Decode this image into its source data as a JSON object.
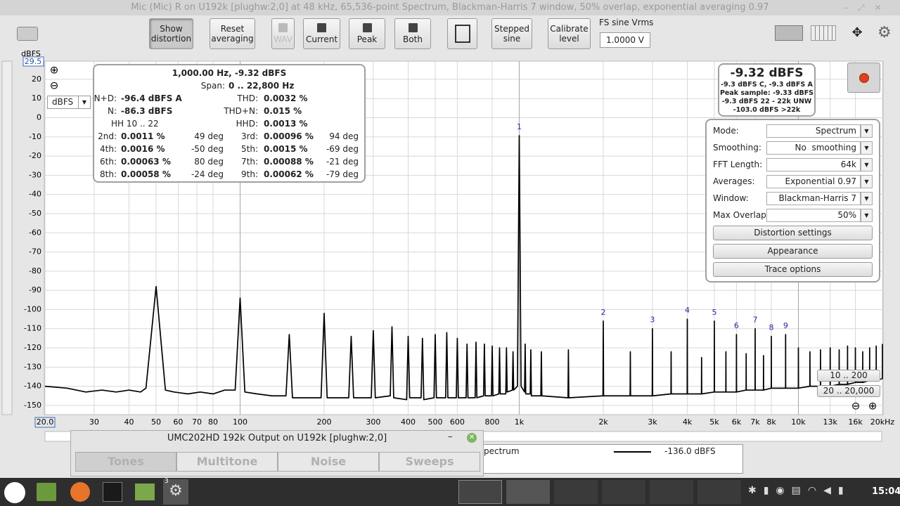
{
  "window": {
    "title": "Mic (Mic) R on U192k [plughw:2,0] at 48 kHz, 65,536-point Spectrum, Blackman-Harris 7 window, 50% overlap, exponential averaging 0.97"
  },
  "toolbar": {
    "buttons": [
      "Show distortion",
      "Reset averaging",
      "WAV",
      "Current",
      "Peak",
      "Both",
      "Stepped sine",
      "Calibrate level"
    ],
    "fs_label": "FS sine Vrms",
    "fs_value": "1.0000 V"
  },
  "chart_data": {
    "type": "line",
    "y_unit": "dBFS",
    "y_unit_select": "dBFS",
    "log_x": true,
    "grid": true,
    "color": "#000000",
    "xlim": [
      20,
      20000
    ],
    "ylim": [
      -154.8,
      29.5
    ],
    "yticks": [
      20,
      10,
      0,
      -10,
      -20,
      -30,
      -40,
      -50,
      -60,
      -70,
      -80,
      -90,
      -100,
      -110,
      -120,
      -130,
      -140,
      -150
    ],
    "xticks": [
      {
        "value": 20,
        "label": "20.0"
      },
      30,
      40,
      50,
      60,
      70,
      80,
      100,
      200,
      300,
      400,
      500,
      600,
      800,
      {
        "value": 1000,
        "label": "1k"
      },
      {
        "value": 2000,
        "label": "2k"
      },
      {
        "value": 3000,
        "label": "3k"
      },
      {
        "value": 4000,
        "label": "4k"
      },
      {
        "value": 5000,
        "label": "5k"
      },
      {
        "value": 6000,
        "label": "6k"
      },
      {
        "value": 7000,
        "label": "7k"
      },
      {
        "value": 8000,
        "label": "8k"
      },
      {
        "value": 10000,
        "label": "10k"
      },
      {
        "value": 13000,
        "label": "13k"
      },
      {
        "value": 16000,
        "label": "16k"
      },
      {
        "value": 20000,
        "label": "20kHz"
      }
    ],
    "x": [
      20,
      24,
      28,
      32,
      36,
      40,
      44,
      46,
      50,
      54,
      58,
      65,
      72,
      80,
      88,
      96,
      100,
      104,
      115,
      130,
      146,
      150,
      154,
      175,
      195,
      200,
      205,
      245,
      250,
      255,
      295,
      300,
      305,
      345,
      350,
      355,
      395,
      400,
      405,
      445,
      450,
      455,
      495,
      500,
      505,
      545,
      550,
      555,
      595,
      600,
      605,
      645,
      650,
      655,
      695,
      700,
      705,
      745,
      750,
      755,
      795,
      800,
      805,
      845,
      850,
      855,
      895,
      900,
      905,
      945,
      950,
      955,
      985,
      1000,
      1015,
      1045,
      1050,
      1055,
      1095,
      1100,
      1105,
      1195,
      1200,
      1205,
      1495,
      1500,
      1505,
      1995,
      2000,
      2005,
      2495,
      2500,
      2505,
      2995,
      3000,
      3005,
      3495,
      3500,
      3505,
      3995,
      4000,
      4005,
      4495,
      4500,
      4505,
      4995,
      5000,
      5005,
      5495,
      5500,
      5505,
      5995,
      6000,
      6005,
      6495,
      6500,
      6505,
      6995,
      7000,
      7005,
      7495,
      7500,
      7505,
      7995,
      8000,
      8005,
      8995,
      9000,
      9005,
      9995,
      10000,
      10010,
      10990,
      11000,
      11010,
      11990,
      12000,
      12010,
      12990,
      13000,
      13010,
      13990,
      14000,
      14010,
      14990,
      15000,
      15010,
      15990,
      16000,
      16010,
      16990,
      17000,
      17010,
      17990,
      18000,
      18010,
      18990,
      19000,
      19010,
      19990,
      20000
    ],
    "values": [
      -140,
      -141,
      -143,
      -142,
      -143,
      -142,
      -143,
      -141,
      -88,
      -142,
      -143,
      -144,
      -143,
      -144,
      -142,
      -142,
      -94,
      -143,
      -144,
      -145,
      -145,
      -113,
      -146,
      -146,
      -146,
      -102,
      -146,
      -146,
      -114,
      -146,
      -146,
      -111,
      -146,
      -145,
      -109,
      -146,
      -147,
      -114,
      -146,
      -146,
      -115,
      -147,
      -146,
      -113,
      -146,
      -146,
      -112,
      -146,
      -146,
      -115,
      -146,
      -146,
      -118,
      -146,
      -146,
      -117,
      -146,
      -145,
      -118,
      -145,
      -145,
      -119,
      -145,
      -144,
      -120,
      -144,
      -144,
      -120,
      -143,
      -142,
      -122,
      -142,
      -140,
      -9.32,
      -140,
      -143,
      -118,
      -144,
      -144,
      -121,
      -145,
      -145,
      -122,
      -145,
      -146,
      -121,
      -146,
      -145,
      -106,
      -145,
      -145,
      -122,
      -145,
      -145,
      -110,
      -145,
      -144,
      -122,
      -144,
      -144,
      -105,
      -144,
      -144,
      -125,
      -144,
      -143,
      -106,
      -143,
      -143,
      -122,
      -143,
      -143,
      -113,
      -143,
      -142,
      -123,
      -142,
      -142,
      -110,
      -142,
      -142,
      -124,
      -142,
      -141,
      -114,
      -141,
      -141,
      -113,
      -141,
      -141,
      -120,
      -141,
      -140,
      -122,
      -140,
      -140,
      -121,
      -140,
      -140,
      -120,
      -140,
      -139,
      -121,
      -139,
      -139,
      -119,
      -139,
      -138,
      -120,
      -138,
      -138,
      -122,
      -138,
      -137,
      -120,
      -137,
      -137,
      -119,
      -137,
      -136,
      -118
    ],
    "annotations": [
      {
        "text": "1",
        "x": 1000,
        "y": -9.32
      },
      {
        "text": "2",
        "x": 2000,
        "y": -106
      },
      {
        "text": "3",
        "x": 3000,
        "y": -110
      },
      {
        "text": "4",
        "x": 4000,
        "y": -105
      },
      {
        "text": "5",
        "x": 5000,
        "y": -106
      },
      {
        "text": "6",
        "x": 6000,
        "y": -113
      },
      {
        "text": "7",
        "x": 7000,
        "y": -110
      },
      {
        "text": "8",
        "x": 8000,
        "y": -114
      },
      {
        "text": "9",
        "x": 9000,
        "y": -113
      }
    ]
  },
  "distortion": {
    "header": "1,000.00 Hz, -9.32 dBFS",
    "span_label": "Span:",
    "span": "0 .. 22,800 Hz",
    "rows": [
      {
        "l1": "N+D:",
        "v1": "-96.4 dBFS A",
        "l2": "THD:",
        "v2": "0.0032 %"
      },
      {
        "l1": "N:",
        "v1": "-86.3 dBFS",
        "l2": "THD+N:",
        "v2": "0.015 %"
      },
      {
        "hh": "HH 10 .. 22",
        "l2": "HHD:",
        "v2": "0.0013 %"
      },
      {
        "l1": "2nd:",
        "v1": "0.0011 %",
        "p1": "49 deg",
        "l2": "3rd:",
        "v2": "0.00096 %",
        "p2": "94 deg"
      },
      {
        "l1": "4th:",
        "v1": "0.0016 %",
        "p1": "-50 deg",
        "l2": "5th:",
        "v2": "0.0015 %",
        "p2": "-69 deg"
      },
      {
        "l1": "6th:",
        "v1": "0.00063 %",
        "p1": "80 deg",
        "l2": "7th:",
        "v2": "0.00088 %",
        "p2": "-21 deg"
      },
      {
        "l1": "8th:",
        "v1": "0.00058 %",
        "p1": "-24 deg",
        "l2": "9th:",
        "v2": "0.00062 %",
        "p2": "-79 deg"
      }
    ]
  },
  "readout": {
    "main": "-9.32 dBFS",
    "lines": [
      "-9.3 dBFS C, -9.3 dBFS A",
      "Peak sample: -9.33 dBFS",
      "-9.3 dBFS 22 - 22k UNW",
      "-103.0 dBFS >22k"
    ]
  },
  "settings": {
    "rows": [
      {
        "label": "Mode:",
        "value": "Spectrum"
      },
      {
        "label": "Smoothing:",
        "value": "No  smoothing"
      },
      {
        "label": "FFT Length:",
        "value": "64k"
      },
      {
        "label": "Averages:",
        "value": "Exponential 0.97"
      },
      {
        "label": "Window:",
        "value": "Blackman-Harris 7"
      },
      {
        "label": "Max Overlap:",
        "value": "50%"
      }
    ],
    "buttons": [
      "Distortion settings",
      "Appearance",
      "Trace options"
    ]
  },
  "range_buttons": [
    "10 .. 200",
    "20 .. 20,000"
  ],
  "generator": {
    "title": "UMC202HD 192k Output on U192k [plughw:2,0]",
    "tabs": [
      "Tones",
      "Multitone",
      "Noise",
      "Sweeps"
    ]
  },
  "legend": {
    "name": "pectrum",
    "value": "-136.0 dBFS"
  },
  "taskbar": {
    "badge": "3",
    "clock": "15:04"
  }
}
